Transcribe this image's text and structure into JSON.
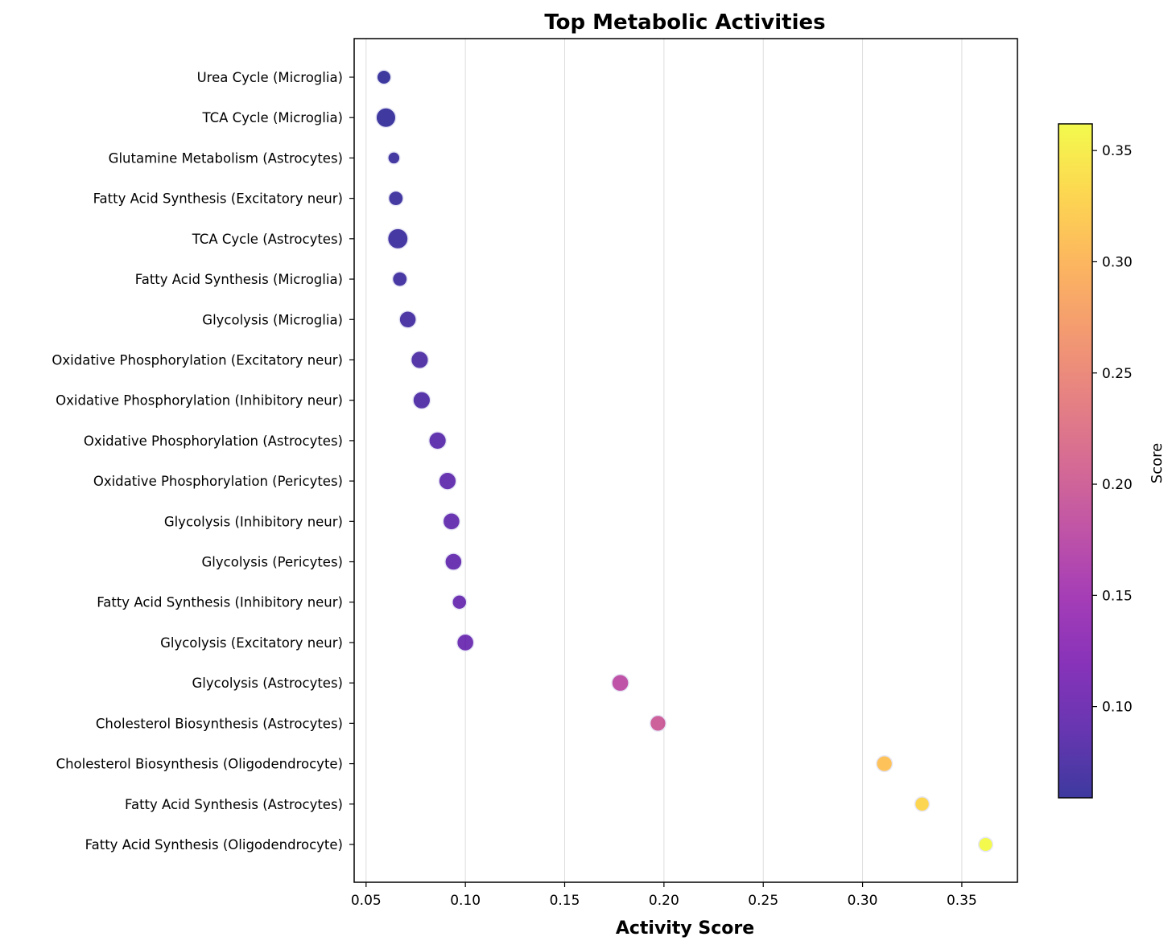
{
  "chart_data": {
    "type": "scatter",
    "title": "Top Metabolic Activities",
    "xlabel": "Activity Score",
    "ylabel": "",
    "xlim": [
      0.044,
      0.378
    ],
    "xticks": [
      0.05,
      0.1,
      0.15,
      0.2,
      0.25,
      0.3,
      0.35
    ],
    "xtick_labels": [
      "0.05",
      "0.10",
      "0.15",
      "0.20",
      "0.25",
      "0.30",
      "0.35"
    ],
    "grid": "vertical",
    "colormap": "plasma",
    "colorbar": {
      "label": "Score",
      "range": [
        0.059,
        0.362
      ],
      "ticks": [
        0.1,
        0.15,
        0.2,
        0.25,
        0.3,
        0.35
      ],
      "tick_labels": [
        "0.10",
        "0.15",
        "0.20",
        "0.25",
        "0.30",
        "0.35"
      ]
    },
    "marker_edge_color": "#e6e6f5",
    "points": [
      {
        "label": "Urea Cycle (Microglia)",
        "x": 0.059,
        "size": 2.0
      },
      {
        "label": "TCA Cycle (Microglia)",
        "x": 0.06,
        "size": 4.2
      },
      {
        "label": "Glutamine Metabolism (Astrocytes)",
        "x": 0.064,
        "size": 1.4
      },
      {
        "label": "Fatty Acid Synthesis (Excitatory neur)",
        "x": 0.065,
        "size": 2.2
      },
      {
        "label": "TCA Cycle (Astrocytes)",
        "x": 0.066,
        "size": 4.5
      },
      {
        "label": "Fatty Acid Synthesis (Microglia)",
        "x": 0.067,
        "size": 2.2
      },
      {
        "label": "Glycolysis (Microglia)",
        "x": 0.071,
        "size": 3.0
      },
      {
        "label": "Oxidative Phosphorylation (Excitatory neur)",
        "x": 0.077,
        "size": 3.2
      },
      {
        "label": "Oxidative Phosphorylation (Inhibitory neur)",
        "x": 0.078,
        "size": 3.2
      },
      {
        "label": "Oxidative Phosphorylation (Astrocytes)",
        "x": 0.086,
        "size": 3.2
      },
      {
        "label": "Oxidative Phosphorylation (Pericytes)",
        "x": 0.091,
        "size": 3.2
      },
      {
        "label": "Glycolysis (Inhibitory neur)",
        "x": 0.093,
        "size": 3.0
      },
      {
        "label": "Glycolysis (Pericytes)",
        "x": 0.094,
        "size": 3.0
      },
      {
        "label": "Fatty Acid Synthesis (Inhibitory neur)",
        "x": 0.097,
        "size": 2.1
      },
      {
        "label": "Glycolysis (Excitatory neur)",
        "x": 0.1,
        "size": 3.0
      },
      {
        "label": "Glycolysis (Astrocytes)",
        "x": 0.178,
        "size": 3.0
      },
      {
        "label": "Cholesterol Biosynthesis (Astrocytes)",
        "x": 0.197,
        "size": 2.6
      },
      {
        "label": "Cholesterol Biosynthesis (Oligodendrocyte)",
        "x": 0.311,
        "size": 2.6
      },
      {
        "label": "Fatty Acid Synthesis (Astrocytes)",
        "x": 0.33,
        "size": 2.1
      },
      {
        "label": "Fatty Acid Synthesis (Oligodendrocyte)",
        "x": 0.362,
        "size": 2.0
      }
    ]
  }
}
